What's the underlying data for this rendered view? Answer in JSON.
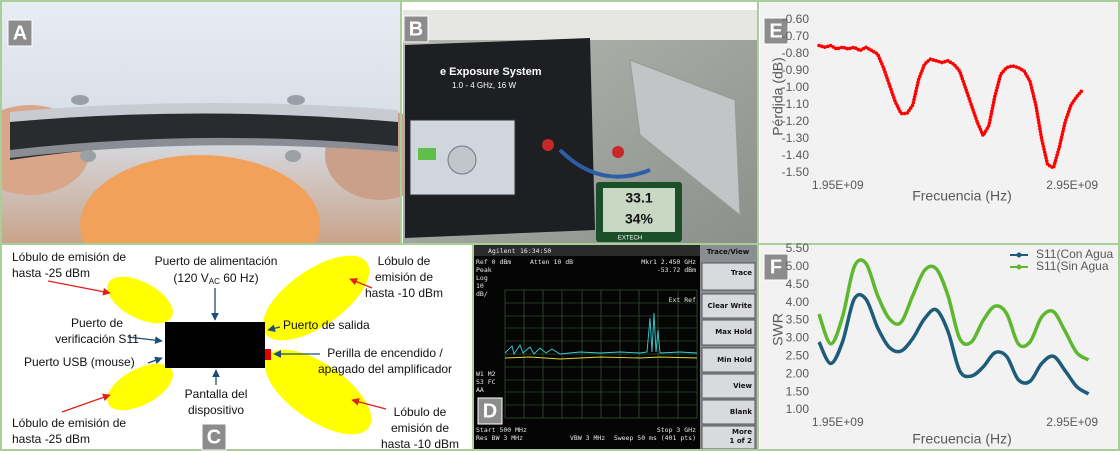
{
  "panels": {
    "labels": [
      "A",
      "B",
      "C",
      "D",
      "E",
      "F"
    ]
  },
  "photo_b": {
    "title": "e Exposure System",
    "subtitle": "1.0 - 4 GHz, 16 W",
    "temp": "33.1",
    "humidity": "34%",
    "brand": "EXTECH"
  },
  "diagram_c": {
    "lobe_tl": [
      "Lóbulo de emisión de",
      "hasta -25 dBm"
    ],
    "lobe_bl": [
      "Lóbulo de emisión de",
      "hasta -25 dBm"
    ],
    "lobe_tr": [
      "Lóbulo de",
      "emisión de",
      "hasta -10 dBm"
    ],
    "lobe_br": [
      "Lóbulo de",
      "emisión de",
      "hasta -10 dBm"
    ],
    "power": [
      "Puerto de alimentación",
      "(120 V",
      "AC",
      " 60 Hz)"
    ],
    "s11": [
      "Puerto de",
      "verificación S11"
    ],
    "usb": "Puerto USB (mouse)",
    "output": "Puerto de salida",
    "switch": [
      "Perilla de encendido /",
      "apagado del amplificador"
    ],
    "screen": [
      "Pantalla del",
      "dispositivo"
    ]
  },
  "screen_d": {
    "brand": "Agilent",
    "time": "16:34:50",
    "marker": [
      "Mkr1  2.450 GHz",
      "-53.72 dBm"
    ],
    "ref": "Ref 0 dBm",
    "atten": "Atten 10 dB",
    "scale": [
      "Peak",
      "Log",
      "10",
      "dB/"
    ],
    "ext": "Ext Ref",
    "flags": [
      "W1 M2",
      "S3 FC",
      "AA"
    ],
    "footer": [
      "Start 500 MHz",
      "Stop 3 GHz",
      "Res BW 3 MHz",
      "VBW 3 MHz",
      "Sweep 50 ms (401 pts)"
    ],
    "menu": [
      "Trace/View",
      "Trace",
      "Clear Write",
      "Max Hold",
      "Min Hold",
      "View",
      "Blank",
      "More",
      "1 of 2"
    ]
  },
  "chart_data": [
    {
      "type": "line",
      "line_style": "dotted",
      "smooth": false,
      "grid": false,
      "y_label": "Pérdida (dB)",
      "x_label": "Frecuencia (Hz)",
      "xlim": [
        1840000000,
        3120000000
      ],
      "xticks": [
        {
          "value": 1950000000,
          "label": "1.95E+09"
        },
        {
          "value": 2950000000,
          "label": "2.95E+09"
        }
      ],
      "ylim": [
        -1.5,
        -0.6
      ],
      "yticks": [
        {
          "value": -0.6,
          "label": "-0.60"
        },
        {
          "value": -0.7,
          "label": "-0.70"
        },
        {
          "value": -0.8,
          "label": "-0.80"
        },
        {
          "value": -0.9,
          "label": "-0.90"
        },
        {
          "value": -1.0,
          "label": "-1.00"
        },
        {
          "value": -1.1,
          "label": "-1.10"
        },
        {
          "value": -1.2,
          "label": "-1.20"
        },
        {
          "value": -1.3,
          "label": "-1.30"
        },
        {
          "value": -1.4,
          "label": "-1.40"
        },
        {
          "value": -1.5,
          "label": "-1.50"
        }
      ],
      "x": [
        1870000000,
        1895000000,
        1920000000,
        1945000000,
        1970000000,
        1995000000,
        2020000000,
        2045000000,
        2070000000,
        2095000000,
        2120000000,
        2145000000,
        2170000000,
        2195000000,
        2220000000,
        2245000000,
        2270000000,
        2295000000,
        2320000000,
        2345000000,
        2370000000,
        2395000000,
        2420000000,
        2445000000,
        2470000000,
        2495000000,
        2520000000,
        2545000000,
        2570000000,
        2595000000,
        2620000000,
        2645000000,
        2670000000,
        2695000000,
        2720000000,
        2745000000,
        2770000000,
        2795000000,
        2820000000,
        2845000000,
        2870000000,
        2895000000,
        2920000000,
        2945000000,
        2970000000,
        2995000000
      ],
      "series": [
        {
          "color": "#ff0000",
          "values": [
            -0.75,
            -0.76,
            -0.75,
            -0.77,
            -0.76,
            -0.77,
            -0.76,
            -0.78,
            -0.76,
            -0.78,
            -0.8,
            -0.88,
            -0.98,
            -1.08,
            -1.15,
            -1.15,
            -1.1,
            -0.95,
            -0.86,
            -0.83,
            -0.84,
            -0.85,
            -0.84,
            -0.86,
            -0.9,
            -1.0,
            -1.1,
            -1.2,
            -1.28,
            -1.22,
            -1.05,
            -0.92,
            -0.88,
            -0.87,
            -0.88,
            -0.9,
            -0.96,
            -1.1,
            -1.3,
            -1.45,
            -1.47,
            -1.35,
            -1.2,
            -1.1,
            -1.05,
            -1.01
          ]
        }
      ]
    },
    {
      "type": "line",
      "line_style": "solid",
      "smooth": true,
      "grid": false,
      "legend": "top-right",
      "y_label": "SWR",
      "x_label": "Frecuencia (Hz)",
      "xlim": [
        1840000000,
        3120000000
      ],
      "xticks": [
        {
          "value": 1950000000,
          "label": "1.95E+09"
        },
        {
          "value": 2950000000,
          "label": "2.95E+09"
        }
      ],
      "ylim": [
        1,
        5.5
      ],
      "yticks": [
        {
          "value": 5.5,
          "label": "5.50"
        },
        {
          "value": 5,
          "label": "5.00"
        },
        {
          "value": 4.5,
          "label": "4.50"
        },
        {
          "value": 4,
          "label": "4.00"
        },
        {
          "value": 3.5,
          "label": "3.50"
        },
        {
          "value": 3,
          "label": "3.00"
        },
        {
          "value": 2.5,
          "label": "2.50"
        },
        {
          "value": 2,
          "label": "2.00"
        },
        {
          "value": 1.5,
          "label": "1.50"
        },
        {
          "value": 1,
          "label": "1.00"
        }
      ],
      "x": [
        1870000000,
        1920000000,
        1970000000,
        2020000000,
        2070000000,
        2120000000,
        2170000000,
        2220000000,
        2270000000,
        2320000000,
        2370000000,
        2420000000,
        2470000000,
        2520000000,
        2570000000,
        2620000000,
        2670000000,
        2720000000,
        2770000000,
        2820000000,
        2870000000,
        2920000000,
        2970000000,
        3020000000
      ],
      "series": [
        {
          "name": "S11(Con Agua",
          "color": "#1f5c7a",
          "values": [
            2.9,
            2.3,
            2.9,
            4.1,
            4.1,
            3.3,
            2.75,
            2.65,
            3.0,
            3.55,
            3.8,
            3.2,
            2.1,
            1.95,
            2.2,
            2.6,
            2.5,
            1.85,
            1.8,
            2.3,
            2.5,
            2.1,
            1.65,
            1.45
          ]
        },
        {
          "name": "S11(Sin Agua",
          "color": "#5db82f",
          "values": [
            3.68,
            2.85,
            3.6,
            5.0,
            5.1,
            4.2,
            3.55,
            3.45,
            4.2,
            4.9,
            4.95,
            4.2,
            3.0,
            2.9,
            3.5,
            3.9,
            3.7,
            2.85,
            2.9,
            3.6,
            3.75,
            3.2,
            2.6,
            2.4
          ]
        }
      ]
    }
  ]
}
